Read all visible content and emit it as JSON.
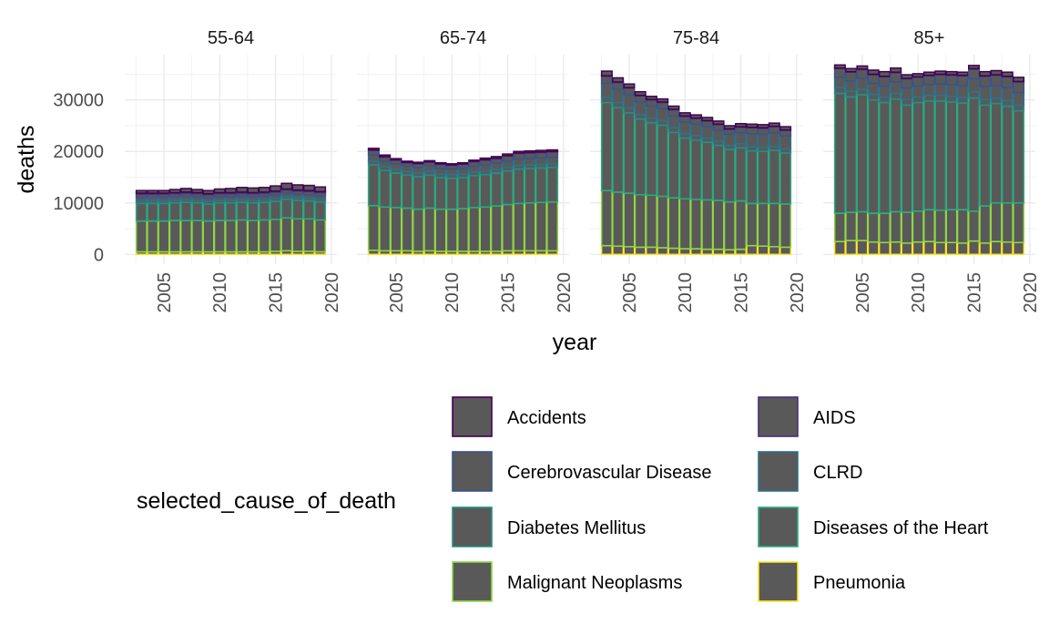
{
  "chart_data": {
    "type": "bar",
    "stacked": true,
    "facet_var": "age_group",
    "facets": [
      "55-64",
      "65-74",
      "75-84",
      "85+"
    ],
    "xlabel": "year",
    "ylabel": "deaths",
    "x_ticks": [
      2005,
      2010,
      2015,
      2020
    ],
    "y_ticks": [
      0,
      10000,
      20000,
      30000
    ],
    "y_tick_labels": [
      "0",
      "10000",
      "20000",
      "30000"
    ],
    "xlim": [
      2001.5,
      2020.5
    ],
    "ylim": [
      -1900,
      38800
    ],
    "bar_fill": "#595959",
    "legend_title": "selected_cause_of_death",
    "legend_position": "bottom",
    "causes": [
      {
        "name": "Accidents",
        "color": "#440154"
      },
      {
        "name": "AIDS",
        "color": "#472D7B"
      },
      {
        "name": "Cerebrovascular Disease",
        "color": "#3B528B"
      },
      {
        "name": "CLRD",
        "color": "#2C728E"
      },
      {
        "name": "Diabetes Mellitus",
        "color": "#21908C"
      },
      {
        "name": "Diseases of the Heart",
        "color": "#27AD81"
      },
      {
        "name": "Malignant Neoplasms",
        "color": "#8FD744"
      },
      {
        "name": "Pneumonia",
        "color": "#FDE725"
      }
    ],
    "years": [
      2003,
      2004,
      2005,
      2006,
      2007,
      2008,
      2009,
      2010,
      2011,
      2012,
      2013,
      2014,
      2015,
      2016,
      2017,
      2018,
      2019
    ],
    "panels": [
      {
        "facet": "55-64",
        "totals": [
          12400,
          12400,
          12400,
          12600,
          12800,
          12600,
          12400,
          12700,
          12800,
          13000,
          12900,
          13000,
          13300,
          13800,
          13500,
          13400,
          13100
        ],
        "by_cause": {
          "Pneumonia": [
            500,
            500,
            500,
            500,
            500,
            500,
            500,
            500,
            500,
            500,
            500,
            500,
            600,
            700,
            600,
            600,
            500
          ],
          "Malignant Neoplasms": [
            6000,
            6000,
            6000,
            6100,
            6100,
            6100,
            6000,
            6100,
            6100,
            6200,
            6100,
            6200,
            6200,
            6400,
            6300,
            6300,
            6200
          ],
          "Diseases of the Heart": [
            3400,
            3400,
            3400,
            3400,
            3500,
            3400,
            3300,
            3400,
            3400,
            3400,
            3400,
            3400,
            3500,
            3600,
            3600,
            3500,
            3500
          ],
          "Diabetes Mellitus": [
            500,
            500,
            500,
            500,
            500,
            500,
            500,
            500,
            500,
            500,
            500,
            500,
            500,
            500,
            500,
            500,
            500
          ],
          "CLRD": [
            700,
            700,
            700,
            700,
            700,
            700,
            700,
            700,
            700,
            700,
            700,
            700,
            700,
            700,
            700,
            700,
            700
          ],
          "Cerebrovascular Disease": [
            600,
            600,
            600,
            600,
            600,
            600,
            600,
            600,
            600,
            600,
            600,
            600,
            600,
            600,
            600,
            600,
            600
          ],
          "AIDS": [
            200,
            200,
            200,
            200,
            200,
            200,
            200,
            200,
            200,
            200,
            200,
            200,
            200,
            200,
            200,
            200,
            200
          ],
          "Accidents": [
            500,
            500,
            500,
            600,
            700,
            600,
            600,
            700,
            800,
            900,
            900,
            900,
            1000,
            1100,
            1000,
            1000,
            900
          ]
        }
      },
      {
        "facet": "65-74",
        "totals": [
          20600,
          19300,
          18600,
          18100,
          17900,
          18200,
          17800,
          17600,
          17800,
          18300,
          18700,
          19000,
          19500,
          20000,
          20100,
          20200,
          20300
        ],
        "by_cause": {
          "Pneumonia": [
            800,
            700,
            700,
            700,
            600,
            700,
            600,
            600,
            600,
            600,
            600,
            600,
            700,
            700,
            700,
            700,
            700
          ],
          "Malignant Neoplasms": [
            8700,
            8500,
            8400,
            8300,
            8200,
            8300,
            8200,
            8200,
            8300,
            8500,
            8600,
            8800,
            9000,
            9200,
            9300,
            9400,
            9500
          ],
          "Diseases of the Heart": [
            7900,
            7100,
            6700,
            6400,
            6300,
            6400,
            6100,
            6000,
            6000,
            6200,
            6300,
            6400,
            6500,
            6700,
            6700,
            6700,
            6700
          ],
          "Diabetes Mellitus": [
            700,
            700,
            700,
            700,
            700,
            700,
            700,
            700,
            700,
            700,
            700,
            700,
            700,
            700,
            700,
            700,
            700
          ],
          "CLRD": [
            1200,
            1100,
            1100,
            1100,
            1100,
            1100,
            1100,
            1100,
            1100,
            1100,
            1200,
            1200,
            1200,
            1200,
            1200,
            1200,
            1200
          ],
          "Cerebrovascular Disease": [
            900,
            800,
            700,
            600,
            700,
            700,
            800,
            700,
            800,
            900,
            900,
            900,
            1000,
            1100,
            1100,
            1100,
            1100
          ],
          "AIDS": [
            100,
            100,
            100,
            100,
            100,
            100,
            100,
            100,
            100,
            100,
            100,
            100,
            100,
            100,
            100,
            100,
            100
          ],
          "Accidents": [
            300,
            300,
            200,
            200,
            200,
            200,
            200,
            200,
            200,
            200,
            300,
            300,
            300,
            300,
            300,
            300,
            300
          ]
        }
      },
      {
        "facet": "75-84",
        "totals": [
          35600,
          34300,
          33100,
          31600,
          30700,
          30200,
          28800,
          27500,
          27100,
          26600,
          25900,
          25000,
          25400,
          25300,
          25200,
          25500,
          24800
        ],
        "by_cause": {
          "Pneumonia": [
            1700,
            1600,
            1500,
            1400,
            1400,
            1300,
            1200,
            1100,
            1100,
            1000,
            1000,
            900,
            1000,
            1700,
            1600,
            1500,
            1400
          ],
          "Malignant Neoplasms": [
            10700,
            10500,
            10400,
            10200,
            10100,
            10000,
            9800,
            9700,
            9600,
            9600,
            9500,
            9300,
            9400,
            8200,
            8300,
            8400,
            8400
          ],
          "Diseases of the Heart": [
            17100,
            16400,
            15600,
            14700,
            14100,
            13800,
            12700,
            11800,
            11500,
            11200,
            10700,
            10200,
            10300,
            10200,
            10100,
            10300,
            9900
          ],
          "Diabetes Mellitus": [
            1000,
            1000,
            1000,
            900,
            900,
            900,
            900,
            900,
            900,
            800,
            800,
            800,
            800,
            800,
            800,
            800,
            800
          ],
          "CLRD": [
            2700,
            2600,
            2500,
            2400,
            2300,
            2300,
            2300,
            2200,
            2200,
            2200,
            2100,
            2100,
            2100,
            2500,
            2500,
            2600,
            2500
          ],
          "Cerebrovascular Disease": [
            1400,
            1300,
            1300,
            1200,
            1200,
            1200,
            1200,
            1100,
            1100,
            1100,
            1100,
            1000,
            1100,
            1200,
            1200,
            1200,
            1100
          ],
          "AIDS": [
            100,
            100,
            100,
            100,
            100,
            100,
            100,
            100,
            100,
            100,
            100,
            100,
            100,
            100,
            100,
            100,
            100
          ],
          "Accidents": [
            900,
            800,
            700,
            700,
            600,
            600,
            600,
            600,
            600,
            600,
            600,
            600,
            600,
            600,
            600,
            600,
            600
          ]
        }
      },
      {
        "facet": "85+",
        "totals": [
          36800,
          36100,
          36600,
          35800,
          35500,
          36100,
          34900,
          35100,
          35400,
          35600,
          35500,
          35400,
          36700,
          35500,
          35700,
          35400,
          34400
        ],
        "by_cause": {
          "Pneumonia": [
            2500,
            2700,
            2700,
            2400,
            2300,
            2400,
            2200,
            2400,
            2500,
            2300,
            2300,
            2200,
            2600,
            2200,
            2500,
            2400,
            2300
          ],
          "Malignant Neoplasms": [
            5500,
            5500,
            5600,
            5600,
            5700,
            5900,
            6000,
            6000,
            6200,
            6300,
            6400,
            6500,
            5800,
            7200,
            7500,
            7600,
            7700
          ],
          "Diseases of the Heart": [
            23300,
            22400,
            22700,
            22000,
            21500,
            21900,
            20800,
            21100,
            21100,
            21200,
            20900,
            20700,
            22000,
            19600,
            19300,
            18800,
            17900
          ],
          "Diabetes Mellitus": [
            1100,
            1100,
            1100,
            1100,
            1100,
            1100,
            1100,
            1100,
            1100,
            1100,
            1100,
            1100,
            1200,
            1100,
            1100,
            1100,
            1100
          ],
          "CLRD": [
            2000,
            2000,
            2100,
            2100,
            2100,
            2200,
            2200,
            2100,
            2100,
            2200,
            2300,
            2300,
            2500,
            2500,
            2400,
            2500,
            2400
          ],
          "Cerebrovascular Disease": [
            1700,
            1700,
            1700,
            1700,
            1800,
            1800,
            1800,
            1700,
            1700,
            1800,
            1800,
            1900,
            1900,
            2000,
            2000,
            2100,
            2100
          ],
          "AIDS": [
            100,
            100,
            100,
            100,
            100,
            100,
            100,
            100,
            100,
            100,
            100,
            100,
            100,
            100,
            100,
            100,
            100
          ],
          "Accidents": [
            600,
            600,
            600,
            800,
            900,
            800,
            700,
            600,
            600,
            600,
            600,
            600,
            600,
            800,
            800,
            800,
            800
          ]
        }
      }
    ]
  }
}
